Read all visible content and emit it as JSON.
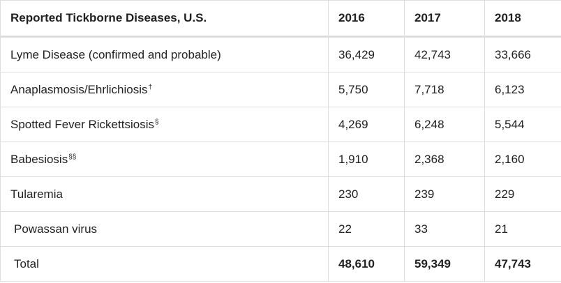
{
  "table": {
    "header": {
      "title": "Reported Tickborne Diseases, U.S.",
      "years": [
        "2016",
        "2017",
        "2018"
      ]
    },
    "rows": [
      {
        "name": "Lyme Disease (confirmed and probable)",
        "mark": "",
        "values": [
          "36,429",
          "42,743",
          "33,666"
        ]
      },
      {
        "name": "Anaplasmosis/Ehrlichiosis",
        "mark": "†",
        "values": [
          "5,750",
          "7,718",
          "6,123"
        ]
      },
      {
        "name": "Spotted Fever Rickettsiosis",
        "mark": "§",
        "values": [
          "4,269",
          "6,248",
          "5,544"
        ]
      },
      {
        "name": "Babesiosis",
        "mark": "§§",
        "values": [
          "1,910",
          "2,368",
          "2,160"
        ]
      },
      {
        "name": "Tularemia",
        "mark": "",
        "values": [
          "230",
          "239",
          "229"
        ]
      },
      {
        "name": "Powassan virus",
        "mark": "",
        "values": [
          "22",
          "33",
          "21"
        ]
      }
    ],
    "total": {
      "label": "Total",
      "values": [
        "48,610",
        "59,349",
        "47,743"
      ]
    }
  }
}
